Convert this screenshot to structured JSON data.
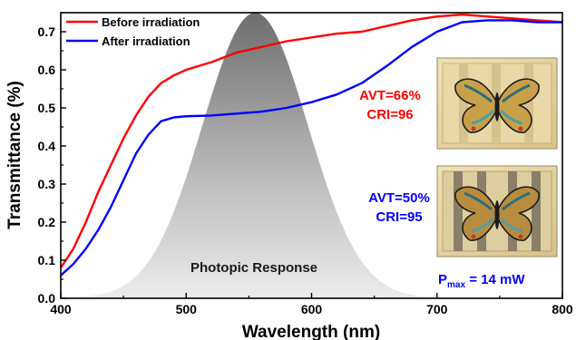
{
  "chart_data": {
    "type": "line",
    "xlabel": "Wavelength (nm)",
    "ylabel": "Transmittance (%)",
    "xlim": [
      400,
      800
    ],
    "ylim": [
      0.0,
      0.75
    ],
    "x_ticks": [
      "400",
      "500",
      "600",
      "700",
      "800"
    ],
    "y_ticks": [
      "0.0",
      "0.1",
      "0.2",
      "0.3",
      "0.4",
      "0.5",
      "0.6",
      "0.7"
    ],
    "grid": false,
    "legend_position": "top-left",
    "series": [
      {
        "name": "Before irradiation",
        "color": "#ff0000",
        "points": [
          [
            400,
            0.08
          ],
          [
            410,
            0.13
          ],
          [
            420,
            0.2
          ],
          [
            430,
            0.28
          ],
          [
            440,
            0.35
          ],
          [
            450,
            0.42
          ],
          [
            460,
            0.48
          ],
          [
            470,
            0.53
          ],
          [
            480,
            0.565
          ],
          [
            490,
            0.585
          ],
          [
            500,
            0.6
          ],
          [
            520,
            0.62
          ],
          [
            540,
            0.645
          ],
          [
            560,
            0.66
          ],
          [
            580,
            0.675
          ],
          [
            600,
            0.685
          ],
          [
            620,
            0.695
          ],
          [
            640,
            0.7
          ],
          [
            660,
            0.715
          ],
          [
            680,
            0.73
          ],
          [
            700,
            0.74
          ],
          [
            720,
            0.745
          ],
          [
            740,
            0.74
          ],
          [
            760,
            0.735
          ],
          [
            780,
            0.73
          ],
          [
            800,
            0.725
          ]
        ]
      },
      {
        "name": "After irradiation",
        "color": "#0000ff",
        "points": [
          [
            400,
            0.06
          ],
          [
            410,
            0.09
          ],
          [
            420,
            0.13
          ],
          [
            430,
            0.18
          ],
          [
            440,
            0.24
          ],
          [
            450,
            0.31
          ],
          [
            460,
            0.38
          ],
          [
            470,
            0.43
          ],
          [
            480,
            0.465
          ],
          [
            490,
            0.475
          ],
          [
            500,
            0.478
          ],
          [
            520,
            0.48
          ],
          [
            540,
            0.485
          ],
          [
            560,
            0.49
          ],
          [
            580,
            0.5
          ],
          [
            600,
            0.515
          ],
          [
            620,
            0.535
          ],
          [
            640,
            0.565
          ],
          [
            660,
            0.61
          ],
          [
            680,
            0.66
          ],
          [
            700,
            0.7
          ],
          [
            720,
            0.725
          ],
          [
            740,
            0.73
          ],
          [
            760,
            0.73
          ],
          [
            780,
            0.725
          ],
          [
            800,
            0.725
          ]
        ]
      }
    ],
    "photopic_response": {
      "label": "Photopic Response",
      "peak_nm": 555,
      "sigma_nm": 42,
      "peak_value": 0.75
    },
    "annotations": {
      "before_avt": "AVT=66%",
      "before_cri": "CRI=96",
      "after_avt": "AVT=50%",
      "after_cri": "CRI=95",
      "pmax_p": "P",
      "pmax_sub": "max",
      "pmax_value": " = 14 mW"
    },
    "colors": {
      "before": "#ff0000",
      "after": "#0000ff"
    },
    "insets": [
      "butterfly-device-photo",
      "butterfly-device-photo"
    ]
  }
}
